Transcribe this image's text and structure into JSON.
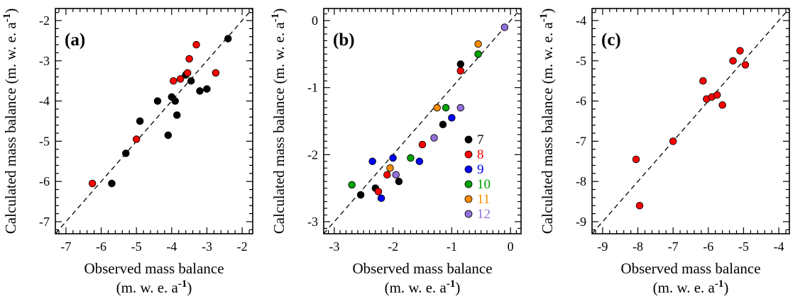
{
  "figure": {
    "background": "#ffffff",
    "axis_labels": {
      "x_line1": "Observed mass balance",
      "unit_pre": "(m. w. e. a",
      "unit_sup": "-1",
      "unit_post": ")",
      "y_pre": "Calculated mass balance (m. w. e. a"
    }
  },
  "chart_data": [
    {
      "type": "scatter",
      "panel_label": "(a)",
      "xlabel": "Observed mass balance (m. w. e. a-1)",
      "ylabel": "Calculated mass balance (m. w. e. a-1)",
      "xlim": [
        -7,
        -2
      ],
      "ylim": [
        -7,
        -2
      ],
      "major_tick_step": 1,
      "minor_tick_step": 0.2,
      "axis_padding": 0.3,
      "identity_line": true,
      "grid": false,
      "series": [
        {
          "name": "black",
          "color": "#000000",
          "points": [
            [
              -5.7,
              -6.05
            ],
            [
              -5.3,
              -5.3
            ],
            [
              -4.9,
              -4.5
            ],
            [
              -4.4,
              -4.0
            ],
            [
              -4.1,
              -4.85
            ],
            [
              -4.0,
              -3.9
            ],
            [
              -3.9,
              -4.0
            ],
            [
              -3.85,
              -4.35
            ],
            [
              -3.6,
              -3.35
            ],
            [
              -3.45,
              -3.5
            ],
            [
              -3.2,
              -3.75
            ],
            [
              -3.0,
              -3.7
            ],
            [
              -2.4,
              -2.45
            ]
          ]
        },
        {
          "name": "red",
          "color": "#ff0000",
          "points": [
            [
              -6.25,
              -6.05
            ],
            [
              -5.0,
              -4.95
            ],
            [
              -3.95,
              -3.5
            ],
            [
              -3.75,
              -3.45
            ],
            [
              -3.55,
              -3.3
            ],
            [
              -3.5,
              -2.95
            ],
            [
              -3.3,
              -2.6
            ],
            [
              -2.75,
              -3.3
            ]
          ]
        }
      ]
    },
    {
      "type": "scatter",
      "panel_label": "(b)",
      "xlabel": "Observed mass balance (m. w. e. a-1)",
      "ylabel": "Calculated mass balance (m. w. e. a-1)",
      "xlim": [
        -3,
        0
      ],
      "ylim": [
        -3,
        0
      ],
      "major_tick_step": 1,
      "minor_tick_step": 0.1,
      "axis_padding": 0.18,
      "identity_line": true,
      "grid": false,
      "legend": {
        "entries": [
          {
            "label": "7",
            "color": "#000000"
          },
          {
            "label": "8",
            "color": "#ff0000"
          },
          {
            "label": "9",
            "color": "#0000ff"
          },
          {
            "label": "10",
            "color": "#00a300"
          },
          {
            "label": "11",
            "color": "#ff8c00"
          },
          {
            "label": "12",
            "color": "#9370db"
          }
        ]
      },
      "series": [
        {
          "name": "7",
          "color": "#000000",
          "points": [
            [
              -2.55,
              -2.6
            ],
            [
              -2.3,
              -2.5
            ],
            [
              -1.9,
              -2.4
            ],
            [
              -1.15,
              -1.55
            ],
            [
              -0.85,
              -0.65
            ]
          ]
        },
        {
          "name": "8",
          "color": "#ff0000",
          "points": [
            [
              -2.25,
              -2.55
            ],
            [
              -2.1,
              -2.3
            ],
            [
              -1.5,
              -1.85
            ],
            [
              -0.85,
              -0.75
            ]
          ]
        },
        {
          "name": "9",
          "color": "#0000ff",
          "points": [
            [
              -2.35,
              -2.1
            ],
            [
              -2.2,
              -2.65
            ],
            [
              -2.0,
              -2.05
            ],
            [
              -1.55,
              -2.1
            ],
            [
              -1.0,
              -1.45
            ]
          ]
        },
        {
          "name": "10",
          "color": "#00a300",
          "points": [
            [
              -2.7,
              -2.45
            ],
            [
              -1.7,
              -2.05
            ],
            [
              -1.1,
              -1.3
            ],
            [
              -0.55,
              -0.5
            ]
          ]
        },
        {
          "name": "11",
          "color": "#ff8c00",
          "points": [
            [
              -2.05,
              -2.2
            ],
            [
              -1.25,
              -1.3
            ],
            [
              -0.55,
              -0.35
            ]
          ]
        },
        {
          "name": "12",
          "color": "#9370db",
          "points": [
            [
              -1.95,
              -2.3
            ],
            [
              -1.3,
              -1.75
            ],
            [
              -0.85,
              -1.3
            ],
            [
              -0.1,
              -0.1
            ]
          ]
        }
      ]
    },
    {
      "type": "scatter",
      "panel_label": "(c)",
      "xlabel": "Observed mass balance (m. w. e. a-1)",
      "ylabel": "Calculated mass balance (m. w. e. a-1)",
      "xlim": [
        -9,
        -4
      ],
      "ylim": [
        -9,
        -4
      ],
      "major_tick_step": 1,
      "minor_tick_step": 0.2,
      "axis_padding": 0.3,
      "identity_line": true,
      "grid": false,
      "series": [
        {
          "name": "red",
          "color": "#ff0000",
          "points": [
            [
              -8.05,
              -7.45
            ],
            [
              -7.95,
              -8.6
            ],
            [
              -7.0,
              -7.0
            ],
            [
              -6.15,
              -5.5
            ],
            [
              -6.05,
              -5.95
            ],
            [
              -5.9,
              -5.9
            ],
            [
              -5.75,
              -5.85
            ],
            [
              -5.6,
              -6.1
            ],
            [
              -5.3,
              -5.0
            ],
            [
              -5.1,
              -4.75
            ],
            [
              -4.95,
              -5.1
            ]
          ]
        }
      ]
    }
  ]
}
